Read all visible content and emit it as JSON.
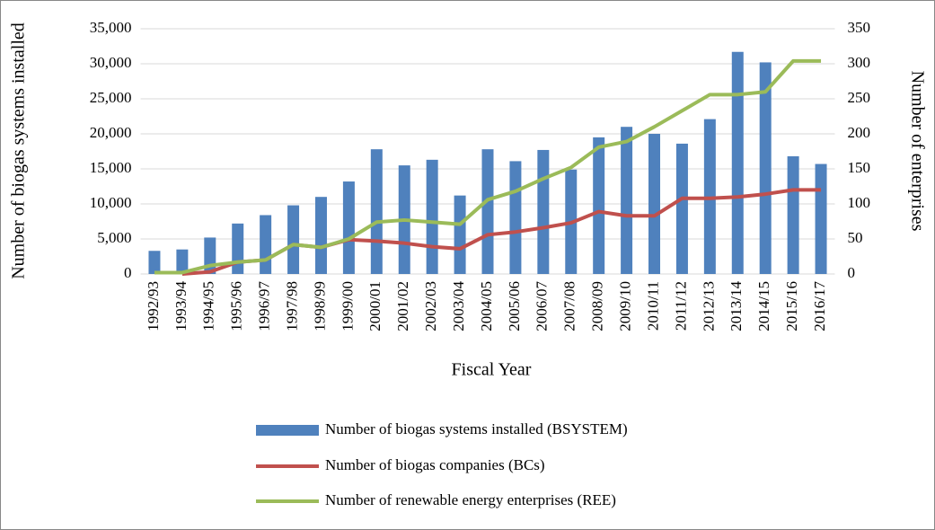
{
  "chart_data": {
    "type": "bar-line",
    "x_label": "Fiscal Year",
    "y_label": "Number of biogas systems installed",
    "y2_label": "Number of enterprises",
    "categories": [
      "1992/93",
      "1993/94",
      "1994/95",
      "1995/96",
      "1996/97",
      "1997/98",
      "1998/99",
      "1999/00",
      "2000/01",
      "2001/02",
      "2002/03",
      "2003/04",
      "2004/05",
      "2005/06",
      "2006/07",
      "2007/08",
      "2008/09",
      "2009/10",
      "2010/11",
      "2011/12",
      "2012/13",
      "2013/14",
      "2014/15",
      "2015/16",
      "2016/17"
    ],
    "series": [
      {
        "name": "Number of biogas systems installed (BSYSTEM)",
        "type": "bar",
        "color": "#4f81bd",
        "axis": "y",
        "values": [
          3300,
          3500,
          5200,
          7200,
          8400,
          9800,
          11000,
          13200,
          17800,
          15500,
          16300,
          11200,
          17800,
          16100,
          17700,
          14900,
          19500,
          21000,
          20000,
          18600,
          22100,
          31700,
          30200,
          16800,
          15700
        ]
      },
      {
        "name": "Number of biogas companies (BCs)",
        "type": "line",
        "color": "#c0504d",
        "axis": "y2",
        "values": [
          null,
          0,
          3,
          17,
          20,
          42,
          38,
          49,
          47,
          44,
          39,
          36,
          56,
          60,
          66,
          73,
          89,
          83,
          83,
          108,
          108,
          110,
          114,
          120,
          120
        ]
      },
      {
        "name": "Number of renewable energy enterprises (REE)",
        "type": "line",
        "color": "#9bbb59",
        "axis": "y2",
        "values": [
          2,
          2,
          12,
          17,
          20,
          42,
          38,
          50,
          74,
          77,
          74,
          71,
          106,
          118,
          136,
          152,
          181,
          189,
          210,
          233,
          256,
          256,
          260,
          304,
          304
        ]
      }
    ],
    "ylim": [
      0,
      35000
    ],
    "yticks": [
      0,
      {
        "value": 5000,
        "label": "5,000"
      },
      {
        "value": 10000,
        "label": "10,000"
      },
      {
        "value": 15000,
        "label": "15,000"
      },
      {
        "value": 20000,
        "label": "20,000"
      },
      {
        "value": 25000,
        "label": "25,000"
      },
      {
        "value": 30000,
        "label": "30,000"
      },
      {
        "value": 35000,
        "label": "35,000"
      }
    ],
    "y2lim": [
      0,
      350
    ],
    "y2ticks": [
      0,
      50,
      100,
      150,
      200,
      250,
      300,
      350
    ],
    "grid": true,
    "legend": "bottom"
  }
}
